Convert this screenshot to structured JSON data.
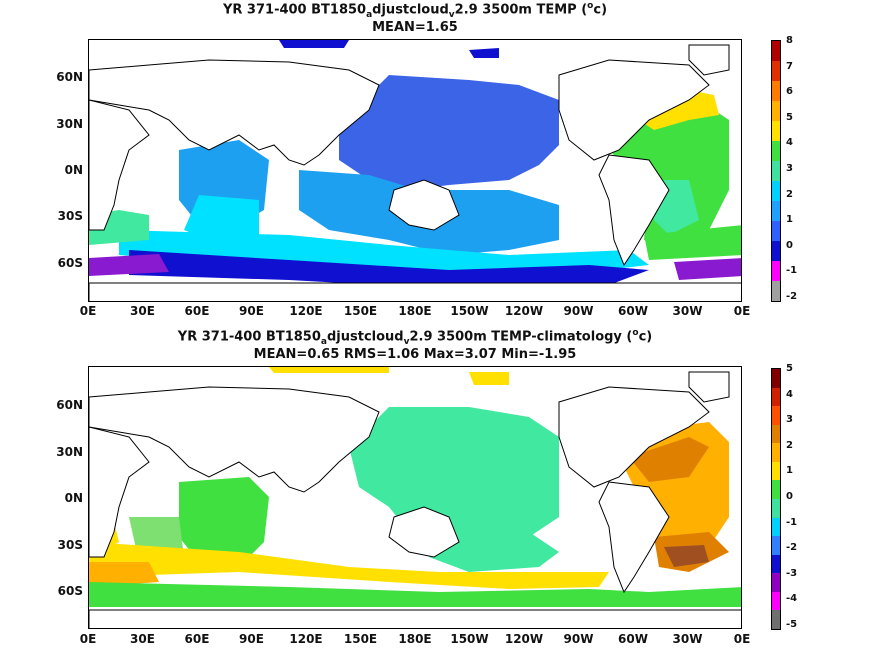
{
  "panels": [
    {
      "title_parts": [
        "YR 371-400 BT1850",
        "a",
        "djustcloud",
        "v",
        "2.9 3500m TEMP (",
        "o",
        "c)"
      ],
      "subtitle": "MEAN=1.65",
      "colorbar": {
        "labels": [
          "8",
          "7",
          "6",
          "5",
          "4",
          "3",
          "2",
          "1",
          "0",
          "-1",
          "-2"
        ],
        "colors": [
          "#b00000",
          "#e03000",
          "#ff7a00",
          "#ffb000",
          "#ffe000",
          "#40e040",
          "#40e0a0",
          "#00d0ff",
          "#20a0ff",
          "#3060ff",
          "#1010d0",
          "#ff00ff",
          "#a0a0a0"
        ]
      }
    },
    {
      "title_parts": [
        "YR 371-400 BT1850",
        "a",
        "djustcloud",
        "v",
        "2.9 3500m TEMP-climatology (",
        "o",
        "c)"
      ],
      "subtitle": "MEAN=0.65   RMS=1.06   Max=3.07   Min=-1.95",
      "colorbar": {
        "labels": [
          "5",
          "4",
          "3",
          "2",
          "1",
          "0",
          "-1",
          "-2",
          "-3",
          "-4",
          "-5"
        ],
        "colors": [
          "#800000",
          "#d02000",
          "#ff5000",
          "#e08000",
          "#ffb000",
          "#ffe000",
          "#40e040",
          "#40e0a0",
          "#00d0ff",
          "#3080ff",
          "#1010d0",
          "#9000c0",
          "#ff00ff",
          "#707070"
        ]
      }
    }
  ],
  "lat_labels": [
    "60N",
    "30N",
    "0N",
    "30S",
    "60S"
  ],
  "lon_labels": [
    "0E",
    "30E",
    "60E",
    "90E",
    "120E",
    "150E",
    "180E",
    "150W",
    "120W",
    "90W",
    "60W",
    "30W",
    "0E"
  ],
  "colors": {
    "land": "#ffffff",
    "coast": "#000000"
  }
}
